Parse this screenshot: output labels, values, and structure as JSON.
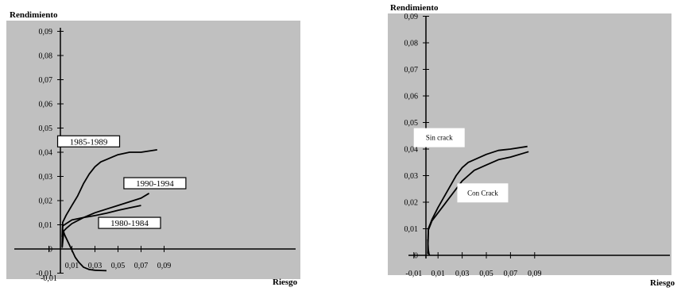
{
  "chart_data": [
    {
      "type": "line",
      "ylabel": "Rendimiento",
      "xlabel": "Riesgo",
      "xlim": [
        -0.01,
        0.09
      ],
      "ylim": [
        -0.01,
        0.09
      ],
      "x_ticks": [
        "-0,01",
        "0,01",
        "0,03",
        "0,05",
        "0,07",
        "0,09"
      ],
      "y_ticks": [
        "0,09",
        "0,08",
        "0,07",
        "0,06",
        "0,05",
        "0,04",
        "0,03",
        "0,02",
        "0,01",
        "0",
        "-0,01"
      ],
      "x_tick_values": [
        -0.01,
        0.01,
        0.03,
        0.05,
        0.07,
        0.09
      ],
      "y_tick_values": [
        0.09,
        0.08,
        0.07,
        0.06,
        0.05,
        0.04,
        0.03,
        0.02,
        0.01,
        0,
        -0.01
      ],
      "grid": false,
      "series": [
        {
          "name": "1985-1989",
          "points": [
            [
              0.0015,
              0.001
            ],
            [
              0.002,
              0.011
            ],
            [
              0.005,
              0.014
            ],
            [
              0.01,
              0.018
            ],
            [
              0.015,
              0.022
            ],
            [
              0.02,
              0.027
            ],
            [
              0.025,
              0.031
            ],
            [
              0.03,
              0.034
            ],
            [
              0.035,
              0.036
            ],
            [
              0.04,
              0.037
            ],
            [
              0.045,
              0.038
            ],
            [
              0.05,
              0.039
            ],
            [
              0.06,
              0.04
            ],
            [
              0.07,
              0.04
            ],
            [
              0.084,
              0.041
            ]
          ]
        },
        {
          "name": "1990-1994",
          "points": [
            [
              0.0015,
              0.0005
            ],
            [
              0.003,
              0.0075
            ],
            [
              0.005,
              0.0085
            ],
            [
              0.01,
              0.0105
            ],
            [
              0.02,
              0.013
            ],
            [
              0.03,
              0.015
            ],
            [
              0.04,
              0.0165
            ],
            [
              0.05,
              0.018
            ],
            [
              0.06,
              0.0195
            ],
            [
              0.07,
              0.021
            ],
            [
              0.077,
              0.023
            ]
          ]
        },
        {
          "name": "1980-1984",
          "points": [
            [
              0.0015,
              0.005
            ],
            [
              0.002,
              0.0095
            ],
            [
              0.005,
              0.0105
            ],
            [
              0.01,
              0.012
            ],
            [
              0.02,
              0.013
            ],
            [
              0.03,
              0.0138
            ],
            [
              0.04,
              0.0148
            ],
            [
              0.05,
              0.016
            ],
            [
              0.06,
              0.017
            ],
            [
              0.07,
              0.018
            ]
          ]
        },
        {
          "name": "",
          "points": [
            [
              0.002,
              0.008
            ],
            [
              0.004,
              0.0055
            ],
            [
              0.007,
              0.0025
            ],
            [
              0.01,
              -0.0005
            ],
            [
              0.013,
              -0.0035
            ],
            [
              0.016,
              -0.0055
            ],
            [
              0.02,
              -0.0075
            ],
            [
              0.025,
              -0.0085
            ],
            [
              0.03,
              -0.0088
            ],
            [
              0.035,
              -0.0089
            ],
            [
              0.04,
              -0.009
            ]
          ]
        }
      ],
      "labels": [
        {
          "text": "1985-1989",
          "x": 0.0245,
          "y": 0.0445
        },
        {
          "text": "1990-1994",
          "x": 0.082,
          "y": 0.0272
        },
        {
          "text": "1980-1984",
          "x": 0.06,
          "y": 0.0108
        }
      ]
    },
    {
      "type": "line",
      "ylabel": "Rendimiento",
      "xlabel": "Riesgo",
      "xlim": [
        -0.01,
        0.09
      ],
      "ylim": [
        0,
        0.09
      ],
      "x_ticks": [
        "-0,01",
        "0,01",
        "0,03",
        "0,05",
        "0,07",
        "0,09"
      ],
      "y_ticks": [
        "0,09",
        "0,08",
        "0,07",
        "0,06",
        "0,05",
        "0,04",
        "0,03",
        "0,02",
        "0,01",
        "0"
      ],
      "x_tick_values": [
        -0.01,
        0.01,
        0.03,
        0.05,
        0.07,
        0.09
      ],
      "y_tick_values": [
        0.09,
        0.08,
        0.07,
        0.06,
        0.05,
        0.04,
        0.03,
        0.02,
        0.01,
        0
      ],
      "grid": false,
      "series": [
        {
          "name": "Sin crack",
          "points": [
            [
              0.0015,
              0.0005
            ],
            [
              0.002,
              0.01
            ],
            [
              0.005,
              0.0135
            ],
            [
              0.01,
              0.018
            ],
            [
              0.015,
              0.022
            ],
            [
              0.02,
              0.026
            ],
            [
              0.025,
              0.03
            ],
            [
              0.03,
              0.033
            ],
            [
              0.035,
              0.035
            ],
            [
              0.04,
              0.036
            ],
            [
              0.045,
              0.037
            ],
            [
              0.05,
              0.038
            ],
            [
              0.06,
              0.0395
            ],
            [
              0.07,
              0.04
            ],
            [
              0.084,
              0.041
            ]
          ]
        },
        {
          "name": "Con Crack",
          "points": [
            [
              0.0015,
              0.0005
            ],
            [
              0.002,
              0.0095
            ],
            [
              0.005,
              0.013
            ],
            [
              0.01,
              0.016
            ],
            [
              0.015,
              0.019
            ],
            [
              0.02,
              0.022
            ],
            [
              0.025,
              0.025
            ],
            [
              0.03,
              0.028
            ],
            [
              0.035,
              0.03
            ],
            [
              0.04,
              0.032
            ],
            [
              0.05,
              0.034
            ],
            [
              0.06,
              0.036
            ],
            [
              0.07,
              0.037
            ],
            [
              0.085,
              0.039
            ]
          ]
        },
        {
          "name": "",
          "points": [
            [
              0.0015,
              0.006
            ],
            [
              0.002,
              0.002
            ],
            [
              0.0025,
              0.0005
            ],
            [
              0.003,
              0.0
            ]
          ]
        }
      ],
      "labels": [
        {
          "text": "Sin crack",
          "x": 0.011,
          "y": 0.0443
        },
        {
          "text": "Con Crack",
          "x": 0.047,
          "y": 0.0235
        }
      ]
    }
  ]
}
